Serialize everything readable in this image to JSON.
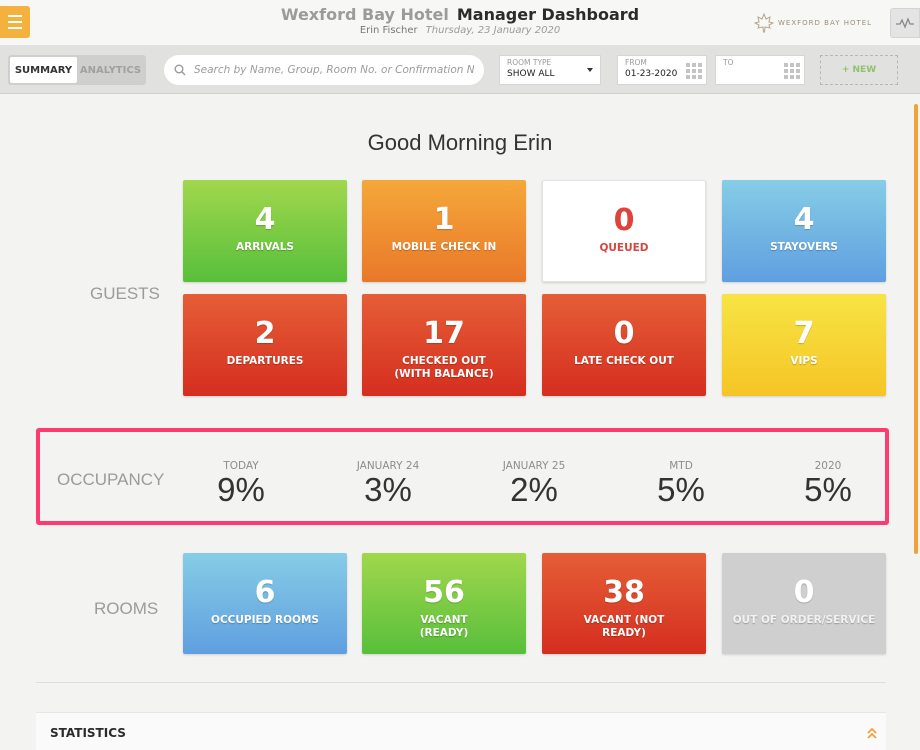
{
  "header": {
    "hotel_name": "Wexford Bay Hotel",
    "dashboard_title": "Manager Dashboard",
    "user_name": "Erin Fischer",
    "date": "Thursday, 23 January 2020",
    "logo_text": "WEXFORD BAY HOTEL"
  },
  "toolbar": {
    "tabs": [
      {
        "label": "SUMMARY",
        "active": true
      },
      {
        "label": "ANALYTICS",
        "active": false
      }
    ],
    "search_placeholder": "Search by Name, Group, Room No. or Confirmation No.",
    "room_type": {
      "label": "ROOM TYPE",
      "value": "SHOW ALL"
    },
    "from": {
      "label": "FROM",
      "value": "01-23-2020"
    },
    "to": {
      "label": "TO",
      "value": ""
    },
    "new_label": "+ NEW"
  },
  "greeting": "Good Morning Erin",
  "guests": {
    "label": "GUESTS",
    "tiles": [
      {
        "value": "4",
        "label": "ARRIVALS",
        "color": "#7cc944"
      },
      {
        "value": "1",
        "label": "MOBILE CHECK IN",
        "color": "#f0912f"
      },
      {
        "value": "0",
        "label": "QUEUED",
        "color": "#ffffff"
      },
      {
        "value": "4",
        "label": "STAYOVERS",
        "color": "#74b6e3"
      },
      {
        "value": "2",
        "label": "DEPARTURES",
        "color": "#dd4429"
      },
      {
        "value": "17",
        "label": "CHECKED OUT (WITH BALANCE)",
        "color": "#dd4429"
      },
      {
        "value": "0",
        "label": "LATE CHECK OUT",
        "color": "#dd4429"
      },
      {
        "value": "7",
        "label": "VIPS",
        "color": "#f6d632"
      }
    ]
  },
  "occupancy": {
    "label": "OCCUPANCY",
    "items": [
      {
        "caption": "TODAY",
        "value": "9%"
      },
      {
        "caption": "JANUARY 24",
        "value": "3%"
      },
      {
        "caption": "JANUARY 25",
        "value": "2%"
      },
      {
        "caption": "MTD",
        "value": "5%"
      },
      {
        "caption": "2020",
        "value": "5%"
      }
    ],
    "highlight_color": "#ff3a73"
  },
  "rooms": {
    "label": "ROOMS",
    "tiles": [
      {
        "value": "6",
        "label": "OCCUPIED ROOMS",
        "color": "#74b6e3"
      },
      {
        "value": "56",
        "label": "VACANT (READY)",
        "color": "#7cc944"
      },
      {
        "value": "38",
        "label": "VACANT (NOT READY)",
        "color": "#dd4429"
      },
      {
        "value": "0",
        "label": "OUT OF ORDER/SERVICE",
        "color": "#cfcfcf"
      }
    ]
  },
  "statistics": {
    "label": "STATISTICS"
  },
  "accent_color": "#f4b13e"
}
